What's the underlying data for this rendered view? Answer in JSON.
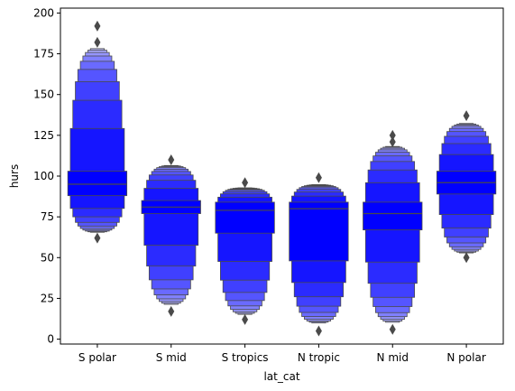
{
  "chart_data": {
    "type": "boxen",
    "xlabel": "lat_cat",
    "ylabel": "hurs",
    "ylim": [
      -3,
      203
    ],
    "yticks": [
      0,
      25,
      50,
      75,
      100,
      125,
      150,
      175,
      200
    ],
    "categories": [
      "S polar",
      "S mid",
      "S tropics",
      "N tropic",
      "N mid",
      "N polar"
    ],
    "colors": {
      "box_base": "#0000ff",
      "edge": "#4a4a4a",
      "outlier": "#4a4a4a"
    },
    "series": [
      {
        "name": "S polar",
        "median": 95,
        "q1": 88,
        "q3": 103,
        "min": 65,
        "max": 180,
        "outliers": [
          62,
          182,
          192
        ]
      },
      {
        "name": "S mid",
        "median": 81,
        "q1": 77,
        "q3": 85,
        "min": 20,
        "max": 107,
        "outliers": [
          17,
          110
        ]
      },
      {
        "name": "S tropics",
        "median": 79,
        "q1": 65,
        "q3": 84,
        "min": 14,
        "max": 93,
        "outliers": [
          12,
          96
        ]
      },
      {
        "name": "N tropic",
        "median": 80,
        "q1": 48,
        "q3": 84,
        "min": 9,
        "max": 95,
        "outliers": [
          5,
          99
        ]
      },
      {
        "name": "N mid",
        "median": 77,
        "q1": 67,
        "q3": 84,
        "min": 9,
        "max": 119,
        "outliers": [
          6,
          121,
          125
        ]
      },
      {
        "name": "N polar",
        "median": 96,
        "q1": 89,
        "q3": 103,
        "min": 52,
        "max": 133,
        "outliers": [
          50,
          137
        ]
      }
    ]
  }
}
